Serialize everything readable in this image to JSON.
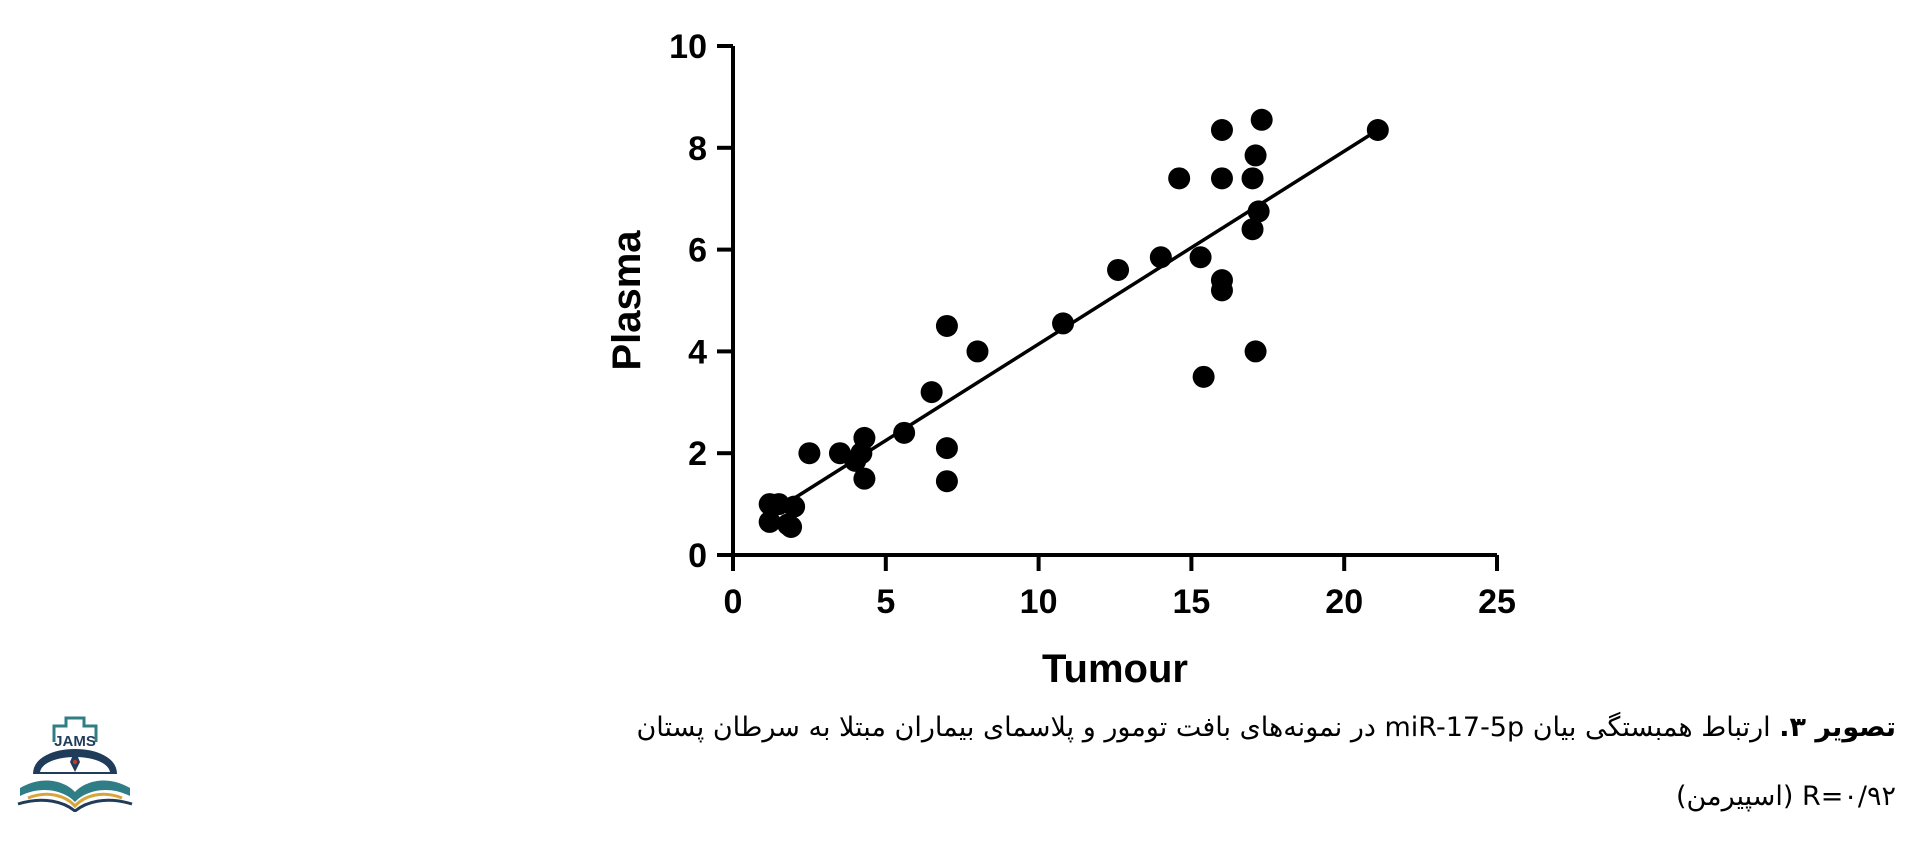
{
  "chart_data": {
    "type": "scatter",
    "xlabel": "Tumour",
    "ylabel": "Plasma",
    "xlim": [
      0,
      25
    ],
    "ylim": [
      0,
      10
    ],
    "x_ticks": [
      0,
      5,
      10,
      15,
      20,
      25
    ],
    "y_ticks": [
      0,
      2,
      4,
      6,
      8,
      10
    ],
    "grid": false,
    "points": [
      {
        "x": 1.2,
        "y": 1.0
      },
      {
        "x": 1.5,
        "y": 1.0
      },
      {
        "x": 1.2,
        "y": 0.65
      },
      {
        "x": 1.8,
        "y": 0.6
      },
      {
        "x": 1.9,
        "y": 0.55
      },
      {
        "x": 2.0,
        "y": 0.95
      },
      {
        "x": 2.5,
        "y": 2.0
      },
      {
        "x": 3.5,
        "y": 2.0
      },
      {
        "x": 4.0,
        "y": 1.85
      },
      {
        "x": 4.2,
        "y": 2.0
      },
      {
        "x": 4.3,
        "y": 2.3
      },
      {
        "x": 4.3,
        "y": 1.5
      },
      {
        "x": 5.6,
        "y": 2.4
      },
      {
        "x": 6.5,
        "y": 3.2
      },
      {
        "x": 7.0,
        "y": 4.5
      },
      {
        "x": 7.0,
        "y": 2.1
      },
      {
        "x": 7.0,
        "y": 1.45
      },
      {
        "x": 8.0,
        "y": 4.0
      },
      {
        "x": 10.8,
        "y": 4.55
      },
      {
        "x": 12.6,
        "y": 5.6
      },
      {
        "x": 14.0,
        "y": 5.85
      },
      {
        "x": 14.6,
        "y": 7.4
      },
      {
        "x": 15.3,
        "y": 5.85
      },
      {
        "x": 15.4,
        "y": 3.5
      },
      {
        "x": 16.0,
        "y": 8.35
      },
      {
        "x": 16.0,
        "y": 7.4
      },
      {
        "x": 16.0,
        "y": 5.4
      },
      {
        "x": 16.0,
        "y": 5.2
      },
      {
        "x": 17.0,
        "y": 7.4
      },
      {
        "x": 17.0,
        "y": 6.4
      },
      {
        "x": 17.1,
        "y": 7.85
      },
      {
        "x": 17.2,
        "y": 6.75
      },
      {
        "x": 17.1,
        "y": 4.0
      },
      {
        "x": 17.3,
        "y": 8.55
      },
      {
        "x": 21.1,
        "y": 8.35
      }
    ],
    "fit_line": {
      "x": [
        1.7,
        21.1
      ],
      "y": [
        1.0,
        8.35
      ]
    }
  },
  "caption": {
    "label": "تصویر ۳.",
    "text": " ارتباط همبستگی بیان miR-17-5p در نمونه‌های بافت تومور و پلاسمای بیماران مبتلا به سرطان پستان",
    "stat": "R=۰/۹۲ (اسپیرمن)"
  },
  "logo": {
    "text": "JAMS"
  },
  "colors": {
    "ink": "#000000",
    "logo_teal": "#2f7e86",
    "logo_navy": "#1f3c5a",
    "logo_gold": "#d8a53a",
    "logo_red": "#c0392b"
  }
}
